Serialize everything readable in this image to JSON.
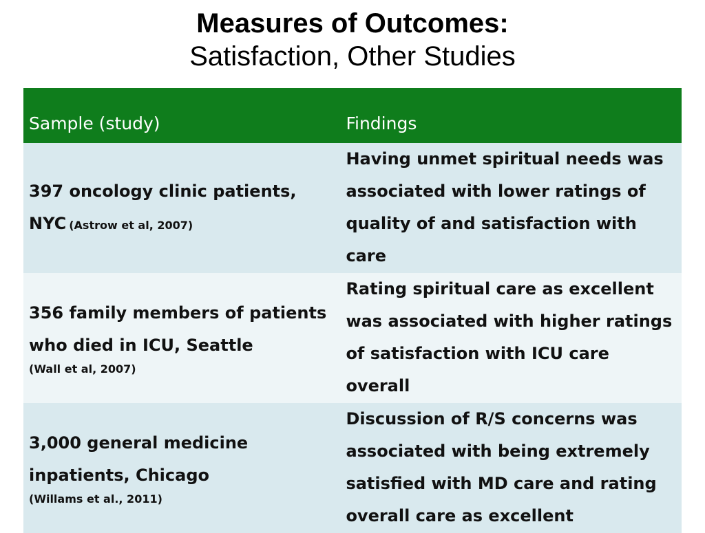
{
  "title": {
    "main": "Measures of Outcomes:",
    "sub": "Satisfaction, Other Studies"
  },
  "table": {
    "headers": [
      "Sample (study)",
      "Findings"
    ],
    "rows": [
      {
        "sample": "397 oncology clinic patients, NYC",
        "citation": "(Astrow et al, 2007)",
        "finding": "Having unmet spiritual needs was associated with lower ratings of quality of and satisfaction with care"
      },
      {
        "sample": "356 family members of patients who died in ICU, Seattle",
        "citation": "(Wall et al, 2007)",
        "finding": "Rating spiritual care as excellent was associated with higher ratings of satisfaction with ICU care overall"
      },
      {
        "sample": "3,000 general medicine inpatients, Chicago",
        "citation": "(Willams et al., 2011)",
        "finding": "Discussion of R/S concerns was associated with being extremely satisfied with MD care and rating overall care as excellent"
      }
    ]
  },
  "colors": {
    "header_bg": "#0f7d1c",
    "row_dark": "#d9e9ee",
    "row_light": "#eef5f7"
  }
}
